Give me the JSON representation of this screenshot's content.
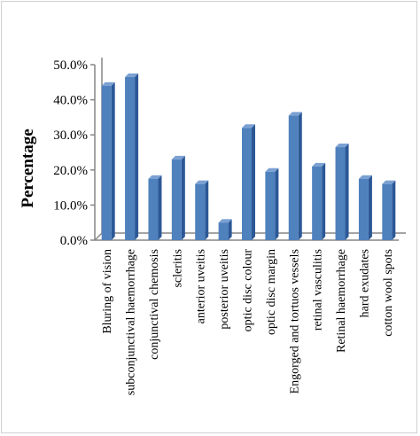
{
  "chart_data": {
    "type": "bar",
    "style": "3d-column",
    "title": "",
    "xlabel": "",
    "ylabel": "Percentage",
    "ylim": [
      0,
      50
    ],
    "yticks": [
      "0.0%",
      "10.0%",
      "20.0%",
      "30.0%",
      "40.0%",
      "50.0%"
    ],
    "grid": false,
    "legend": "none",
    "colors": {
      "bar": "#4f81bd",
      "bar_side": "#2c5896",
      "bar_top": "#7ba1d3",
      "axis": "#868686"
    },
    "categories": [
      "Bluring of vision",
      "subconjunctival haemorrhage",
      "conjunctival chemosis",
      "scleritis",
      "anterior uveitis",
      "posterior uveitis",
      "optic disc colour",
      "optic disc margin",
      "Engorged and tortuos vessels",
      "retinal vasculitis",
      "Retinal haemorrhage",
      "hard exudates",
      "cotton wool spots"
    ],
    "values": [
      44,
      46.5,
      17.5,
      23,
      16,
      5,
      32,
      19.5,
      35.5,
      21,
      26.5,
      17.5,
      16
    ]
  }
}
